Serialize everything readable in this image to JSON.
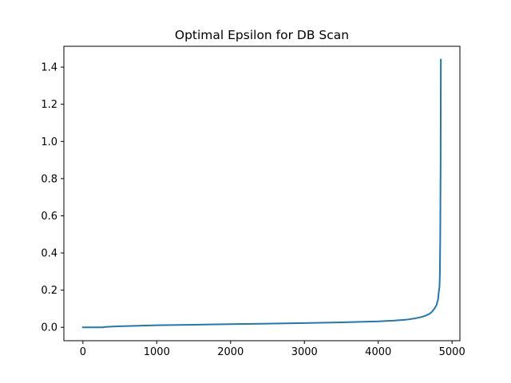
{
  "chart_data": {
    "type": "line",
    "title": "Optimal Epsilon for DB Scan",
    "xlabel": "",
    "ylabel": "",
    "xlim": [
      -258,
      5106
    ],
    "ylim": [
      -0.072,
      1.512
    ],
    "x_ticks": [
      0,
      1000,
      2000,
      3000,
      4000,
      5000
    ],
    "x_tick_labels": [
      "0",
      "1000",
      "2000",
      "3000",
      "4000",
      "5000"
    ],
    "y_ticks": [
      0.0,
      0.2,
      0.4,
      0.6,
      0.8,
      1.0,
      1.2,
      1.4
    ],
    "y_tick_labels": [
      "0.0",
      "0.2",
      "0.4",
      "0.6",
      "0.8",
      "1.0",
      "1.2",
      "1.4"
    ],
    "grid": false,
    "line_color": "#1f77b4",
    "series": [
      {
        "x": [
          0,
          100,
          200,
          270,
          300,
          400,
          500,
          600,
          800,
          1000,
          1500,
          2000,
          2500,
          3000,
          3500,
          4000,
          4200,
          4400,
          4500,
          4600,
          4650,
          4700,
          4730,
          4760,
          4790,
          4810,
          4820,
          4830,
          4835,
          4840,
          4845,
          4848
        ],
        "y": [
          0.0,
          0.0,
          0.0,
          0.0,
          0.002,
          0.004,
          0.006,
          0.007,
          0.009,
          0.011,
          0.014,
          0.017,
          0.02,
          0.023,
          0.027,
          0.032,
          0.036,
          0.042,
          0.048,
          0.057,
          0.064,
          0.074,
          0.085,
          0.1,
          0.12,
          0.15,
          0.19,
          0.22,
          0.29,
          0.5,
          0.9,
          1.44
        ]
      }
    ]
  }
}
